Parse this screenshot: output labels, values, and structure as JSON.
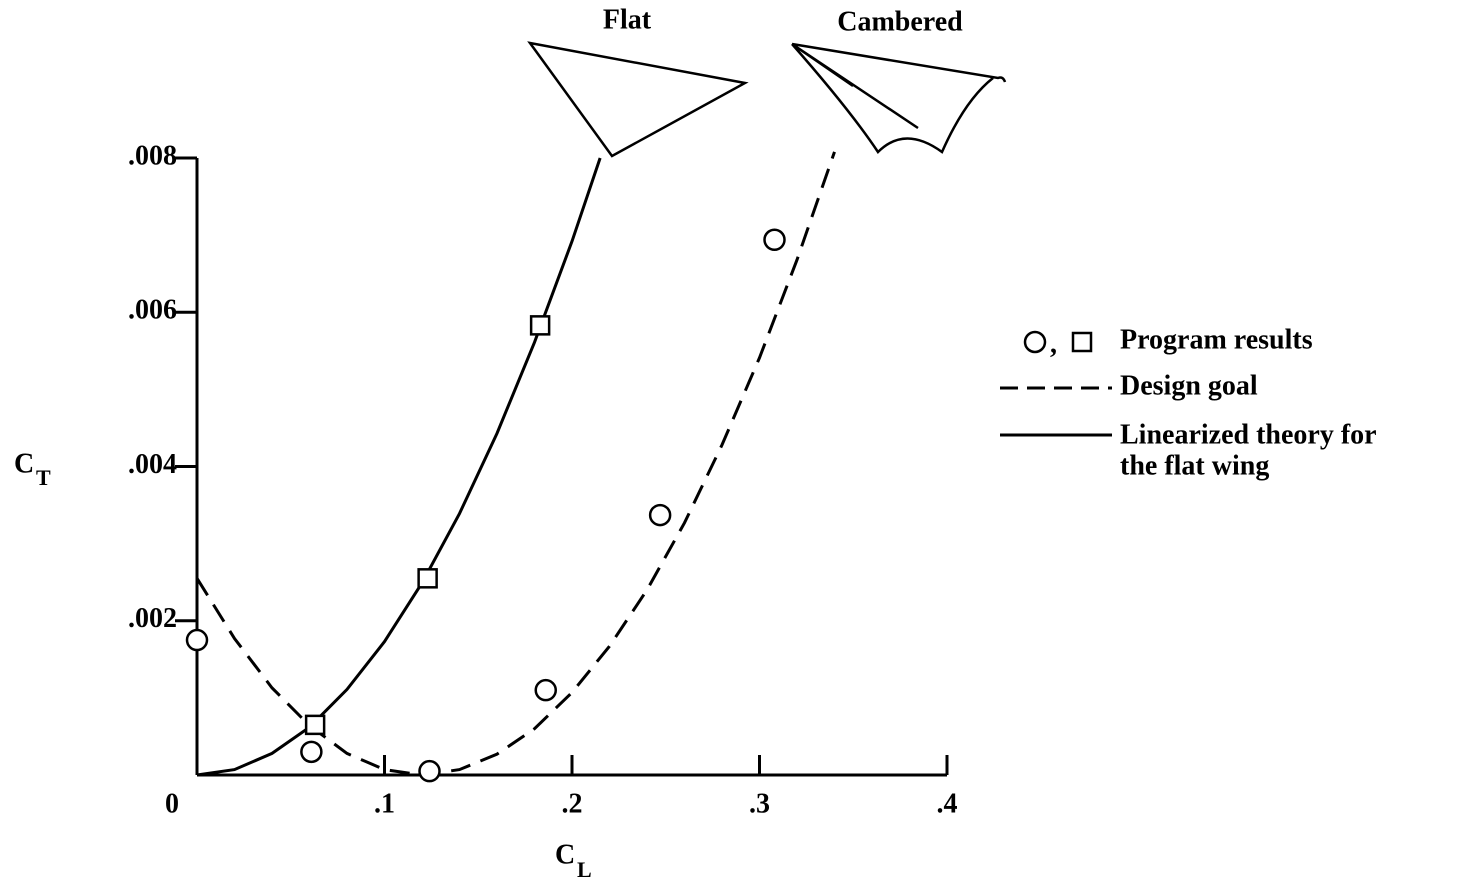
{
  "chart_data": {
    "type": "line",
    "y_label": "C",
    "y_label_sub": "T",
    "x_label": "C",
    "x_label_sub": "L",
    "annotations": [
      "Flat",
      "Cambered"
    ],
    "xlim": [
      0,
      0.4
    ],
    "xticks": [
      0,
      {
        "value": 0.1,
        "label": ".1"
      },
      {
        "value": 0.2,
        "label": ".2"
      },
      {
        "value": 0.3,
        "label": ".3"
      },
      {
        "value": 0.4,
        "label": ".4"
      }
    ],
    "ylim": [
      0,
      0.008
    ],
    "yticks": [
      {
        "value": 0.002,
        "label": ".002"
      },
      {
        "value": 0.004,
        "label": ".004"
      },
      {
        "value": 0.006,
        "label": ".006"
      },
      {
        "value": 0.008,
        "label": ".008"
      }
    ],
    "grid": false,
    "legend_separator": ",",
    "series": [
      {
        "name": "Program results",
        "kind": "scatter",
        "marker": "circle",
        "color": "#000000",
        "x": [
          0,
          0.061,
          0.124,
          0.186,
          0.247,
          0.308
        ],
        "values": [
          0.00175,
          0.0003,
          5e-05,
          0.0011,
          0.00337,
          0.00694
        ]
      },
      {
        "kind": "scatter",
        "marker": "square",
        "color": "#000000",
        "x": [
          0.063,
          0.123,
          0.183
        ],
        "values": [
          0.00065,
          0.00255,
          0.00583
        ]
      },
      {
        "name": "Design goal",
        "kind": "line",
        "dashed": true,
        "color": "#000000",
        "x": [
          0,
          0.02,
          0.04,
          0.06,
          0.08,
          0.1,
          0.12,
          0.14,
          0.16,
          0.18,
          0.2,
          0.22,
          0.24,
          0.26,
          0.28,
          0.3,
          0.32,
          0.34
        ],
        "values": [
          0.00255,
          0.00177,
          0.00113,
          0.00064,
          0.00028,
          7e-05,
          0,
          7e-05,
          0.00027,
          0.0006,
          0.00107,
          0.00167,
          0.0024,
          0.00327,
          0.00428,
          0.00541,
          0.00668,
          0.00808
        ]
      },
      {
        "name_lines": [
          "Linearized theory for",
          "the flat wing"
        ],
        "kind": "line",
        "dashed": false,
        "color": "#000000",
        "x": [
          0,
          0.02,
          0.04,
          0.06,
          0.08,
          0.1,
          0.12,
          0.14,
          0.16,
          0.18,
          0.2,
          0.215
        ],
        "values": [
          0,
          7e-05,
          0.00028,
          0.00062,
          0.00111,
          0.00173,
          0.00249,
          0.00339,
          0.00443,
          0.00561,
          0.00692,
          0.008
        ]
      }
    ]
  }
}
